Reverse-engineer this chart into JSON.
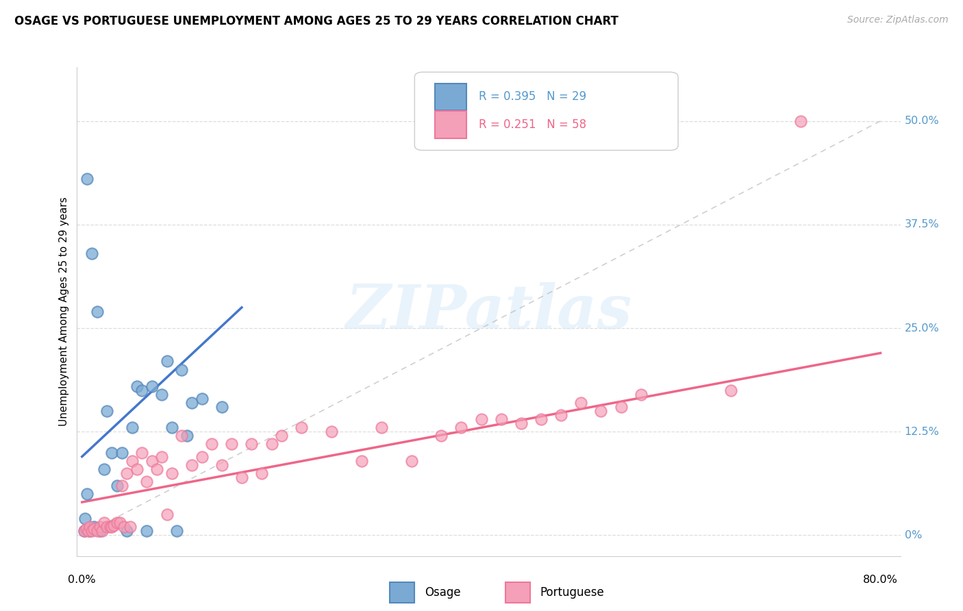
{
  "title": "OSAGE VS PORTUGUESE UNEMPLOYMENT AMONG AGES 25 TO 29 YEARS CORRELATION CHART",
  "source": "Source: ZipAtlas.com",
  "ylabel": "Unemployment Among Ages 25 to 29 years",
  "ytick_labels": [
    "0%",
    "12.5%",
    "25.0%",
    "37.5%",
    "50.0%"
  ],
  "ytick_values": [
    0.0,
    0.125,
    0.25,
    0.375,
    0.5
  ],
  "xrange": [
    -0.005,
    0.82
  ],
  "yrange": [
    -0.025,
    0.565
  ],
  "legend_r1": "R = 0.395",
  "legend_n1": "N = 29",
  "legend_r2": "R = 0.251",
  "legend_n2": "N = 58",
  "osage_color": "#7AAAD4",
  "portuguese_color": "#F4A0B8",
  "osage_edge_color": "#5588BB",
  "portuguese_edge_color": "#EE7799",
  "osage_line_color": "#4477CC",
  "portuguese_line_color": "#EE6688",
  "ref_line_color": "#BBBBBB",
  "watermark": "ZIPatlas",
  "osage_x": [
    0.005,
    0.01,
    0.015,
    0.005,
    0.003,
    0.008,
    0.012,
    0.018,
    0.022,
    0.025,
    0.03,
    0.035,
    0.04,
    0.045,
    0.05,
    0.055,
    0.06,
    0.065,
    0.07,
    0.08,
    0.085,
    0.09,
    0.095,
    0.1,
    0.105,
    0.11,
    0.12,
    0.14,
    0.002
  ],
  "osage_y": [
    0.43,
    0.34,
    0.27,
    0.05,
    0.02,
    0.005,
    0.01,
    0.005,
    0.08,
    0.15,
    0.1,
    0.06,
    0.1,
    0.005,
    0.13,
    0.18,
    0.175,
    0.005,
    0.18,
    0.17,
    0.21,
    0.13,
    0.005,
    0.2,
    0.12,
    0.16,
    0.165,
    0.155,
    0.005
  ],
  "portuguese_x": [
    0.002,
    0.004,
    0.006,
    0.008,
    0.01,
    0.012,
    0.015,
    0.018,
    0.02,
    0.022,
    0.025,
    0.028,
    0.03,
    0.032,
    0.035,
    0.038,
    0.04,
    0.042,
    0.045,
    0.048,
    0.05,
    0.055,
    0.06,
    0.065,
    0.07,
    0.075,
    0.08,
    0.085,
    0.09,
    0.1,
    0.11,
    0.12,
    0.13,
    0.14,
    0.15,
    0.16,
    0.17,
    0.18,
    0.19,
    0.2,
    0.22,
    0.25,
    0.28,
    0.3,
    0.33,
    0.36,
    0.38,
    0.4,
    0.42,
    0.44,
    0.46,
    0.48,
    0.5,
    0.52,
    0.54,
    0.56,
    0.65,
    0.72
  ],
  "portuguese_y": [
    0.005,
    0.008,
    0.005,
    0.01,
    0.005,
    0.008,
    0.005,
    0.01,
    0.005,
    0.015,
    0.01,
    0.01,
    0.01,
    0.012,
    0.015,
    0.015,
    0.06,
    0.01,
    0.075,
    0.01,
    0.09,
    0.08,
    0.1,
    0.065,
    0.09,
    0.08,
    0.095,
    0.025,
    0.075,
    0.12,
    0.085,
    0.095,
    0.11,
    0.085,
    0.11,
    0.07,
    0.11,
    0.075,
    0.11,
    0.12,
    0.13,
    0.125,
    0.09,
    0.13,
    0.09,
    0.12,
    0.13,
    0.14,
    0.14,
    0.135,
    0.14,
    0.145,
    0.16,
    0.15,
    0.155,
    0.17,
    0.175,
    0.5
  ]
}
